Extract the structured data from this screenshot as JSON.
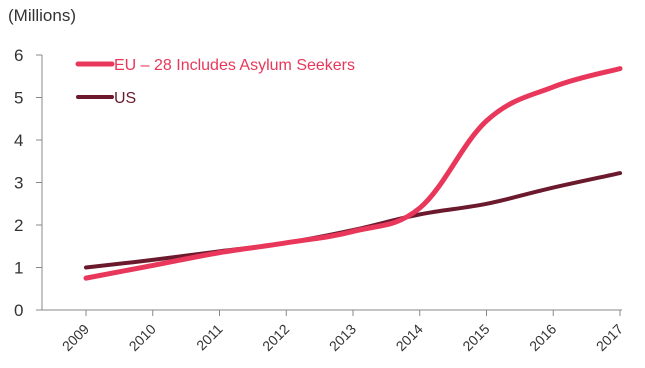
{
  "chart_data": {
    "type": "line",
    "title": "",
    "unit_label": "(Millions)",
    "xlabel": "",
    "ylabel": "",
    "x": [
      "2009",
      "2010",
      "2011",
      "2012",
      "2013",
      "2014",
      "2015",
      "2016",
      "2017"
    ],
    "ylim": [
      0,
      6
    ],
    "yticks": [
      "0",
      "1",
      "2",
      "3",
      "4",
      "5",
      "6"
    ],
    "grid": false,
    "legend_position": "top-left",
    "series": [
      {
        "name": "EU – 28 Includes Asylum Seekers",
        "color": "#e8375a",
        "values": [
          0.75,
          1.05,
          1.35,
          1.58,
          1.85,
          2.4,
          4.45,
          5.25,
          5.68
        ]
      },
      {
        "name": "US",
        "color": "#6b1a2e",
        "values": [
          1.0,
          1.18,
          1.38,
          1.58,
          1.88,
          2.25,
          2.5,
          2.88,
          3.22
        ]
      }
    ]
  }
}
